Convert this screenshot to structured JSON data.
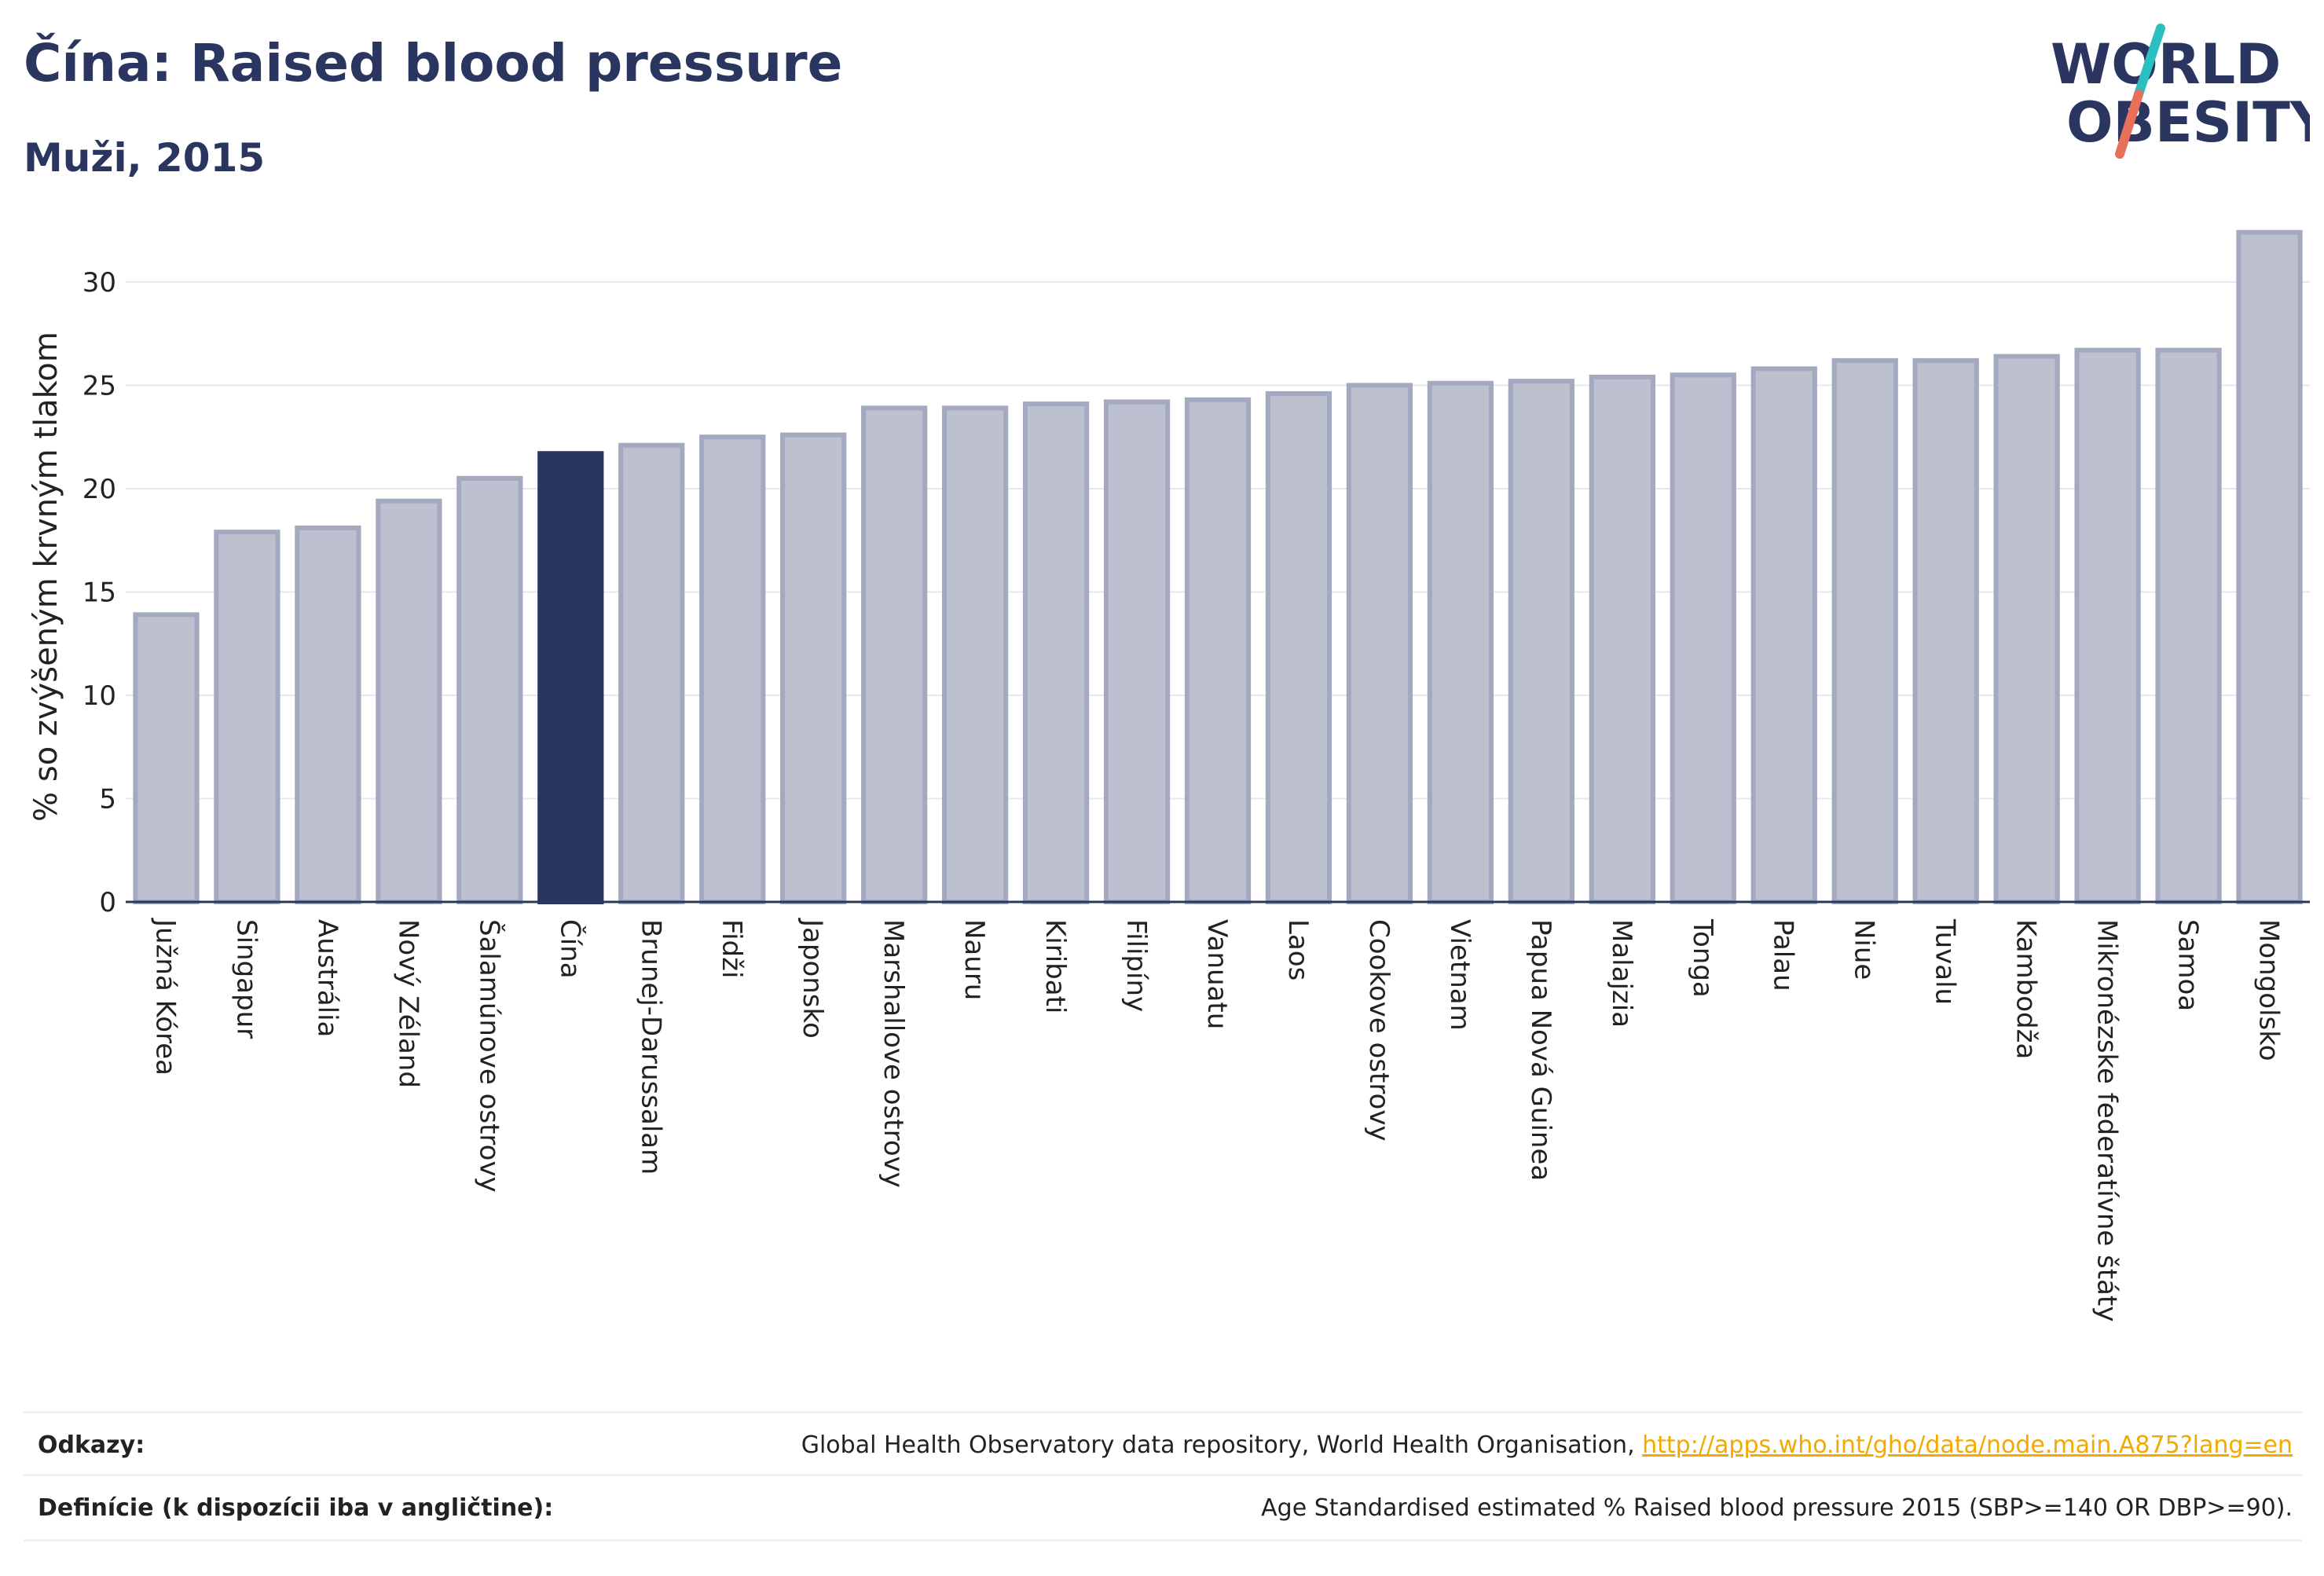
{
  "header": {
    "title": "Čína: Raised blood pressure",
    "subtitle": "Muži, 2015"
  },
  "logo": {
    "line1": "WORLD",
    "line2": "OBESITY",
    "colors": {
      "text": "#2a3560",
      "slash_top": "#2bbfbf",
      "slash_bottom": "#e8705a"
    }
  },
  "footer": {
    "sources_label": "Odkazy:",
    "sources_text": "Global Health Observatory data repository, World Health Organisation, ",
    "sources_link": "http://apps.who.int/gho/data/node.main.A875?lang=en",
    "definitions_label": "Definície (k dispozícii iba v angličtine):",
    "definitions_text": "Age Standardised estimated % Raised blood pressure 2015 (SBP>=140 OR DBP>=90)."
  },
  "colors": {
    "bar": "#bcc0cf",
    "bar_border": "#a3a9bf",
    "highlight": "#2a3560",
    "grid": "#e6e8ef",
    "axis": "#2a3560"
  },
  "chart_data": {
    "type": "bar",
    "ylabel": "% so zvýšeným krvným tlakom",
    "ylim": [
      0,
      33
    ],
    "yticks": [
      0,
      5,
      10,
      15,
      20,
      25,
      30
    ],
    "grid": true,
    "highlight_category": "Čína",
    "categories": [
      "Južná Kórea",
      "Singapur",
      "Austrália",
      "Nový Zéland",
      "Šalamúnove ostrovy",
      "Čína",
      "Brunej-Darussalam",
      "Fidži",
      "Japonsko",
      "Marshallove ostrovy",
      "Nauru",
      "Kiribati",
      "Filipíny",
      "Vanuatu",
      "Laos",
      "Cookove ostrovy",
      "Vietnam",
      "Papua Nová Guinea",
      "Malajzia",
      "Tonga",
      "Palau",
      "Niue",
      "Tuvalu",
      "Kambodža",
      "Mikronézske federatívne štáty",
      "Samoa",
      "Mongolsko"
    ],
    "values": [
      13.9,
      17.9,
      18.1,
      19.4,
      20.5,
      21.7,
      22.1,
      22.5,
      22.6,
      23.9,
      23.9,
      24.1,
      24.2,
      24.3,
      24.6,
      25.0,
      25.1,
      25.2,
      25.4,
      25.5,
      25.8,
      26.2,
      26.2,
      26.4,
      26.7,
      26.7,
      32.4
    ]
  }
}
